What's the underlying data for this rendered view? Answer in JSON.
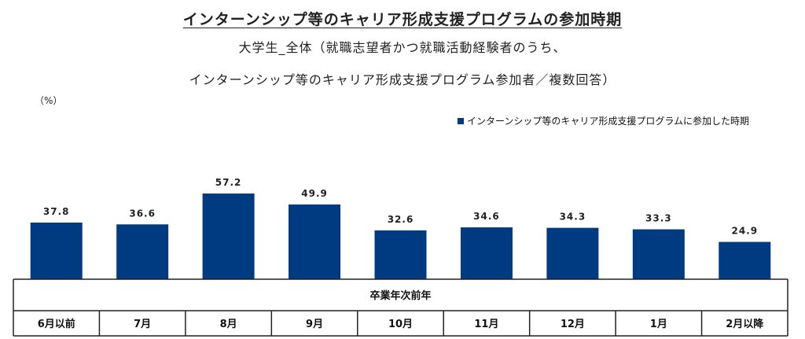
{
  "title": "インターンシップ等のキャリア形成支援プログラムの参加時期",
  "subtitle_line1": "大学生_全体（就職志望者かつ就職活動経験者のうち、",
  "subtitle_line2": "インターンシップ等のキャリア形成支援プログラム参加者／複数回答）",
  "unit_label": "（%）",
  "group_label": "卒業年次前年",
  "colors": {
    "bar": "#003a80",
    "border": "#222222"
  },
  "chart_data": {
    "type": "bar",
    "categories": [
      "6月以前",
      "7月",
      "8月",
      "9月",
      "10月",
      "11月",
      "12月",
      "1月",
      "2月以降"
    ],
    "series": [
      {
        "name": "インターンシップ等のキャリア形成支援プログラムに参加した時期",
        "values": [
          37.8,
          36.6,
          57.2,
          49.9,
          32.6,
          34.6,
          34.3,
          33.3,
          24.9
        ]
      }
    ],
    "value_labels": [
      "37.8",
      "36.6",
      "57.2",
      "49.9",
      "32.6",
      "34.6",
      "34.3",
      "33.3",
      "24.9"
    ],
    "ylim": [
      0,
      100
    ],
    "grid": false,
    "legend_position": "top-right"
  }
}
